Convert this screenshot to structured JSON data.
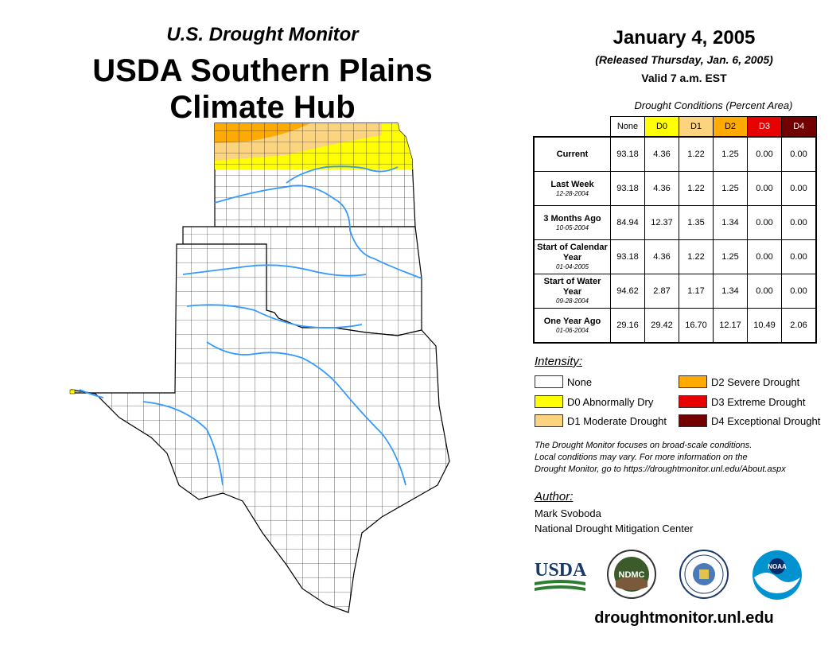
{
  "header": {
    "subtitle": "U.S. Drought Monitor",
    "title_line1": "USDA Southern Plains",
    "title_line2": "Climate Hub"
  },
  "info": {
    "date": "January 4, 2005",
    "released": "(Released Thursday, Jan. 6, 2005)",
    "valid": "Valid 7 a.m. EST"
  },
  "table": {
    "title": "Drought Conditions (Percent Area)",
    "columns": [
      {
        "label": "None",
        "color": "#ffffff",
        "text": "#000000"
      },
      {
        "label": "D0",
        "color": "#ffff00",
        "text": "#000000"
      },
      {
        "label": "D1",
        "color": "#fcd37f",
        "text": "#000000"
      },
      {
        "label": "D2",
        "color": "#ffaa00",
        "text": "#000000"
      },
      {
        "label": "D3",
        "color": "#e60000",
        "text": "#ffffff"
      },
      {
        "label": "D4",
        "color": "#730000",
        "text": "#ffffff"
      }
    ],
    "rows": [
      {
        "label": "Current",
        "date": "",
        "values": [
          "93.18",
          "4.36",
          "1.22",
          "1.25",
          "0.00",
          "0.00"
        ]
      },
      {
        "label": "Last Week",
        "date": "12-28-2004",
        "values": [
          "93.18",
          "4.36",
          "1.22",
          "1.25",
          "0.00",
          "0.00"
        ]
      },
      {
        "label": "3 Months Ago",
        "date": "10-05-2004",
        "values": [
          "84.94",
          "12.37",
          "1.35",
          "1.34",
          "0.00",
          "0.00"
        ]
      },
      {
        "label": "Start of Calendar Year",
        "date": "01-04-2005",
        "values": [
          "93.18",
          "4.36",
          "1.22",
          "1.25",
          "0.00",
          "0.00"
        ]
      },
      {
        "label": "Start of Water Year",
        "date": "09-28-2004",
        "values": [
          "94.62",
          "2.87",
          "1.17",
          "1.34",
          "0.00",
          "0.00"
        ]
      },
      {
        "label": "One Year Ago",
        "date": "01-06-2004",
        "values": [
          "29.16",
          "29.42",
          "16.70",
          "12.17",
          "10.49",
          "2.06"
        ]
      }
    ]
  },
  "legend": {
    "heading": "Intensity:",
    "items": [
      {
        "label": "None",
        "color": "#ffffff"
      },
      {
        "label": "D0 Abnormally Dry",
        "color": "#ffff00"
      },
      {
        "label": "D1 Moderate Drought",
        "color": "#fcd37f"
      },
      {
        "label": "D2 Severe Drought",
        "color": "#ffaa00"
      },
      {
        "label": "D3 Extreme Drought",
        "color": "#e60000"
      },
      {
        "label": "D4 Exceptional Drought",
        "color": "#730000"
      }
    ]
  },
  "note": {
    "line1": "The Drought Monitor focuses on broad-scale conditions.",
    "line2": "Local conditions may vary. For more information on the",
    "line3": "Drought Monitor, go to https://droughtmonitor.unl.edu/About.aspx"
  },
  "author": {
    "heading": "Author:",
    "name": "Mark Svoboda",
    "org": "National Drought Mitigation Center"
  },
  "logos": {
    "usda": "USDA",
    "ndmc": "NDMC",
    "noaa": "NOAA"
  },
  "footer": {
    "url": "droughtmonitor.unl.edu"
  }
}
